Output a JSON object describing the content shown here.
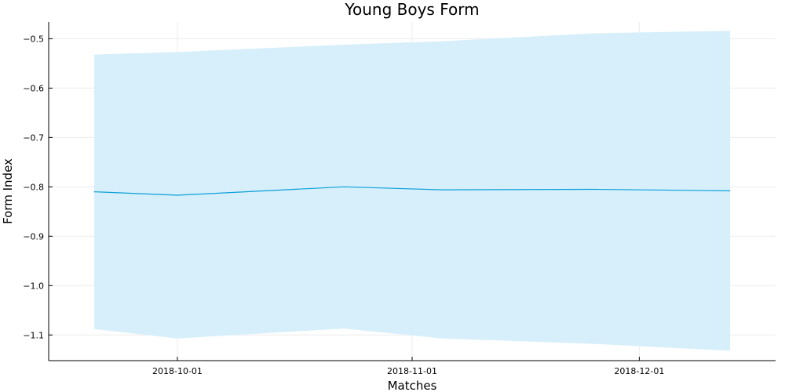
{
  "chart_data": {
    "type": "line",
    "title": "Young Boys Form",
    "xlabel": "Matches",
    "ylabel": "Form Index",
    "x": [
      "2018-09-20",
      "2018-10-01",
      "2018-10-23",
      "2018-11-05",
      "2018-11-25",
      "2018-12-13"
    ],
    "series": [
      {
        "values": [
          -0.81,
          -0.817,
          -0.8,
          -0.806,
          -0.805,
          -0.808
        ],
        "lower": [
          -1.088,
          -1.107,
          -1.087,
          -1.107,
          -1.118,
          -1.132
        ],
        "upper": [
          -0.532,
          -0.527,
          -0.512,
          -0.505,
          -0.489,
          -0.484
        ]
      }
    ],
    "xlim": [
      "2018-09-14",
      "2018-12-19"
    ],
    "ylim": [
      -1.152,
      -0.466
    ],
    "xticks": [
      "2018-10-01",
      "2018-11-01",
      "2018-12-01"
    ],
    "yticks": [
      -0.5,
      -0.6,
      -0.7,
      -0.8,
      -0.9,
      -1.0,
      -1.1
    ],
    "ytick_labels": [
      "−0.5",
      "−0.6",
      "−0.7",
      "−0.8",
      "−0.9",
      "−1.0",
      "−1.1"
    ],
    "grid": true,
    "legend": "none",
    "colors": {
      "line": "#0aa0d8",
      "band": "#d7effb",
      "grid": "#ececec",
      "axis": "#000000"
    }
  }
}
